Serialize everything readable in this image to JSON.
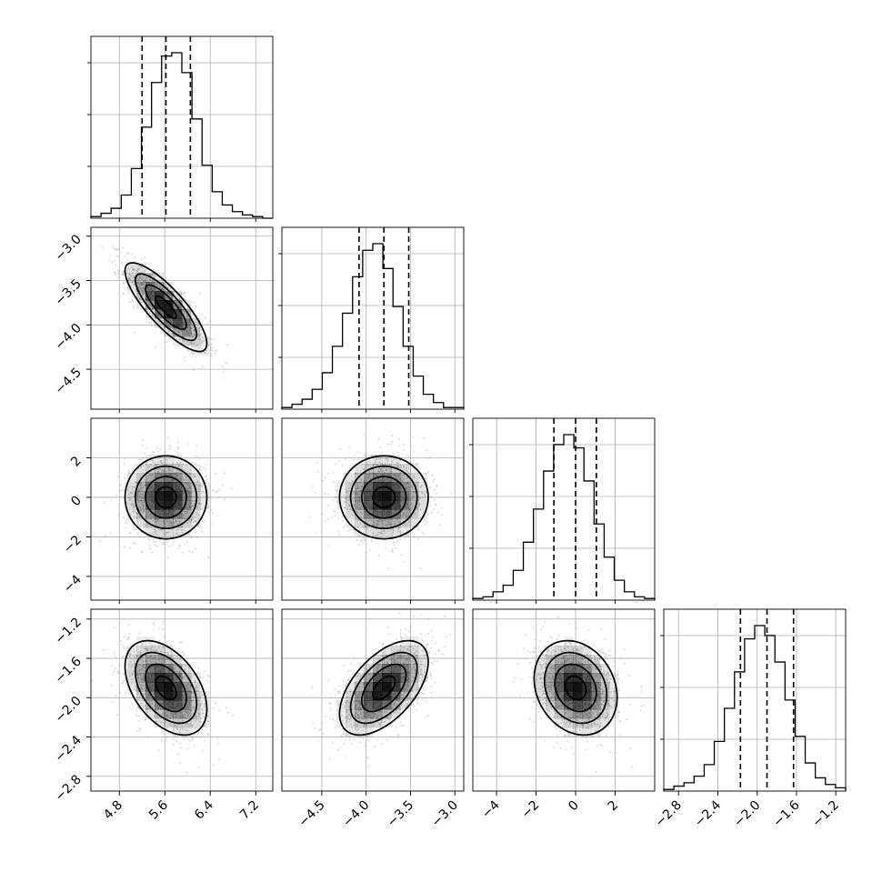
{
  "chart_data": {
    "type": "corner",
    "grid": true,
    "parameters": [
      {
        "range": [
          4.3,
          7.5
        ],
        "ticks": [
          4.8,
          5.6,
          6.4,
          7.2
        ],
        "tick_labels": [
          "4.8",
          "5.6",
          "6.4",
          "7.2"
        ],
        "mean": 5.62,
        "sd": 0.36,
        "quantiles": [
          5.2,
          5.62,
          6.05
        ],
        "hist_counts": [
          1,
          3,
          6,
          14,
          30,
          55,
          82,
          98,
          100,
          88,
          60,
          32,
          16,
          8,
          4,
          2,
          1,
          0
        ],
        "hist_yticks": [
          0.3,
          0.6,
          0.9
        ]
      },
      {
        "range": [
          -4.95,
          -2.9
        ],
        "ticks": [
          -4.5,
          -4.0,
          -3.5,
          -3.0
        ],
        "tick_labels": [
          "−4.5",
          "−4.0",
          "−3.5",
          "−3.0"
        ],
        "mean": -3.8,
        "sd": 0.25,
        "quantiles": [
          -4.08,
          -3.8,
          -3.52
        ],
        "hist_counts": [
          1,
          3,
          6,
          12,
          22,
          38,
          58,
          80,
          96,
          100,
          85,
          62,
          38,
          20,
          9,
          4,
          1,
          1
        ],
        "hist_yticks": [
          0.3,
          0.6,
          0.9
        ]
      },
      {
        "range": [
          -5.2,
          4.0
        ],
        "ticks": [
          -4,
          -2,
          0,
          2
        ],
        "tick_labels": [
          "−4",
          "−2",
          "0",
          "2"
        ],
        "mean": 0.0,
        "sd": 1.05,
        "quantiles": [
          -1.1,
          0.0,
          1.05
        ],
        "hist_counts": [
          1,
          2,
          5,
          9,
          18,
          35,
          55,
          78,
          94,
          100,
          92,
          72,
          46,
          26,
          12,
          5,
          2,
          1
        ],
        "hist_yticks": [
          0.3,
          0.6,
          0.9
        ]
      },
      {
        "range": [
          -2.95,
          -1.1
        ],
        "ticks": [
          -2.8,
          -2.4,
          -2.0,
          -1.6,
          -1.2
        ],
        "tick_labels": [
          "−2.8",
          "−2.4",
          "−2.0",
          "−1.6",
          "−1.2"
        ],
        "mean": -1.9,
        "sd": 0.24,
        "quantiles": [
          -2.17,
          -1.9,
          -1.63
        ],
        "hist_counts": [
          1,
          3,
          5,
          9,
          16,
          30,
          50,
          72,
          92,
          100,
          94,
          78,
          55,
          33,
          17,
          8,
          4,
          2
        ],
        "hist_yticks": [
          0.3,
          0.6,
          0.9
        ]
      }
    ],
    "correlations": {
      "1-0": -0.82,
      "2-0": 0.0,
      "2-1": 0.0,
      "3-0": -0.45,
      "3-1": 0.55,
      "3-2": -0.2
    },
    "contour_levels_sigma": [
      0.5,
      1.0,
      1.5,
      2.0
    ],
    "colors": {
      "line": "#000000",
      "density": "#000000",
      "grid": "#b0b0b0",
      "points": "#a0a0a0"
    }
  }
}
